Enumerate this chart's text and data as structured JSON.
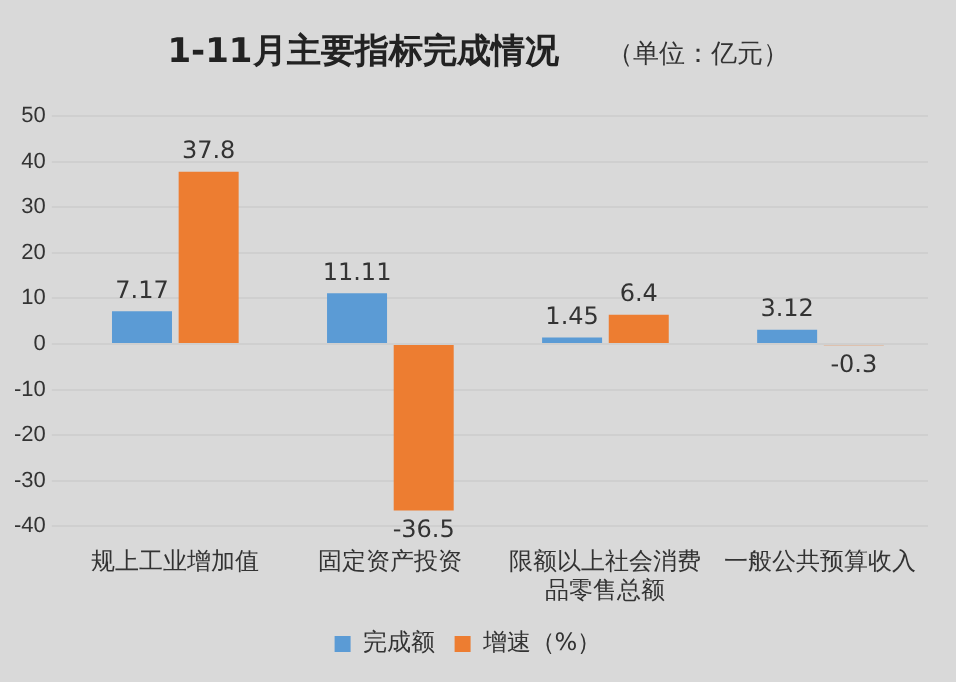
{
  "chart_data": {
    "type": "bar",
    "title": "1-11月主要指标完成情况",
    "subtitle": "（单位：亿元）",
    "categories": [
      "规上工业增加值",
      "固定资产投资",
      "限额以上社会消费品零售总额",
      "一般公共预算收入"
    ],
    "series": [
      {
        "name": "完成额",
        "color": "#5b9bd5",
        "values": [
          7.17,
          11.11,
          1.45,
          3.12
        ]
      },
      {
        "name": "增速（%）",
        "color": "#ed7d31",
        "values": [
          37.8,
          -36.5,
          6.4,
          -0.3
        ]
      }
    ],
    "ylim": [
      -40,
      50
    ],
    "yticks": [
      -40,
      -30,
      -20,
      -10,
      0,
      10,
      20,
      30,
      40,
      50
    ],
    "grid": "y",
    "legend": "bottom",
    "data_labels": true
  }
}
